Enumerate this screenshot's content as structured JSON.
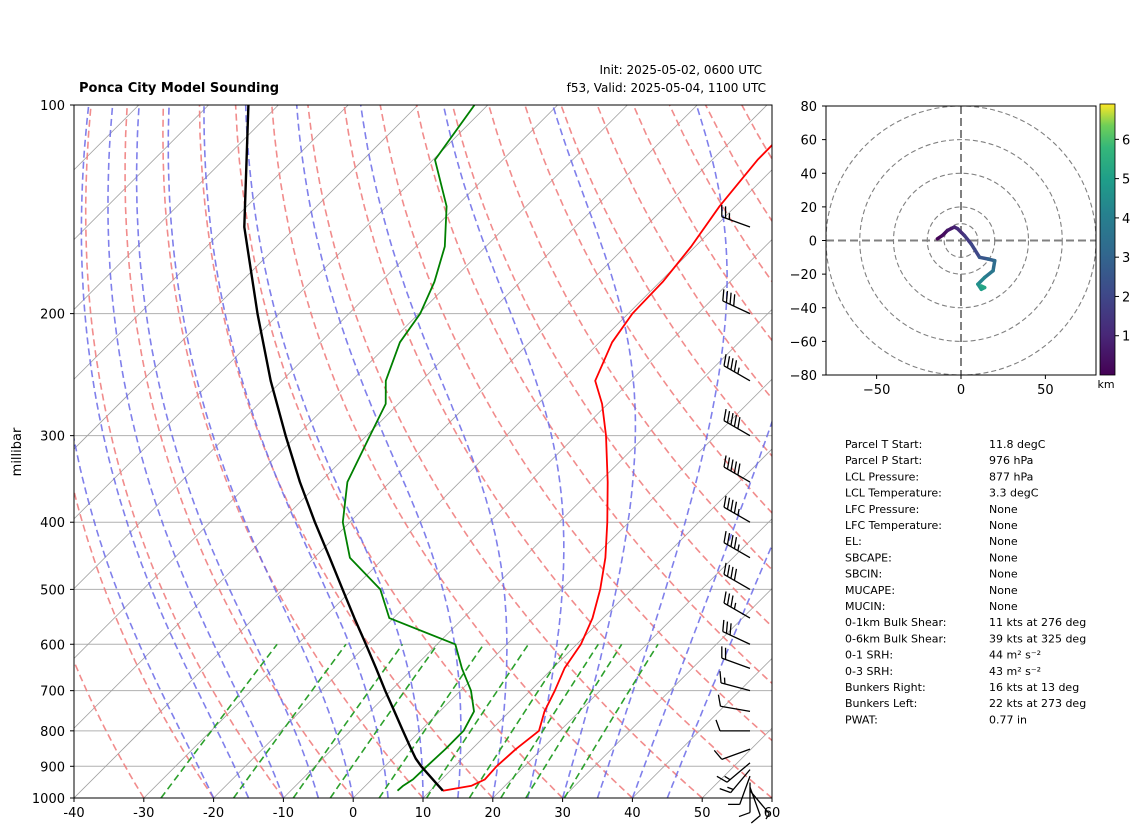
{
  "header": {
    "title": "Ponca City Model Sounding",
    "init": "Init: 2025-05-02, 0600 UTC",
    "valid": "f53, Valid: 2025-05-04, 1100 UTC"
  },
  "chart_data": [
    {
      "type": "skew-t",
      "ylabel": "millibar",
      "xlim": [
        -40,
        60
      ],
      "ylim": [
        1000,
        100
      ],
      "y_log_scale": true,
      "x_ticks": [
        -40,
        -30,
        -20,
        -10,
        0,
        10,
        20,
        30,
        40,
        50,
        60
      ],
      "y_ticks": [
        1000,
        900,
        800,
        700,
        600,
        500,
        400,
        300,
        200,
        100
      ],
      "colors": {
        "temperature": "#ff0000",
        "dewpoint": "#008000",
        "parcel": "#000000",
        "dry_adiabats": "#f08080",
        "moist_adiabats": "#6a6ae8",
        "mixing_ratio": "#2ca02c",
        "isotherms": "#a0a0a0"
      },
      "series": [
        {
          "key": "temperature",
          "p": [
            976,
            960,
            940,
            900,
            850,
            800,
            750,
            700,
            650,
            600,
            550,
            500,
            450,
            400,
            350,
            300,
            270,
            250,
            220,
            200,
            180,
            160,
            140,
            120,
            100
          ],
          "t": [
            11.8,
            15.2,
            16.2,
            16.0,
            16.3,
            17.0,
            15.0,
            13.5,
            11.7,
            10.6,
            8.5,
            5.5,
            1.7,
            -3.1,
            -8.8,
            -15.7,
            -20.8,
            -25.1,
            -28.2,
            -29.4,
            -29.6,
            -30.6,
            -32.3,
            -33.5,
            -33.6
          ]
        },
        {
          "key": "dewpoint",
          "p": [
            976,
            960,
            940,
            900,
            850,
            800,
            750,
            700,
            650,
            600,
            550,
            500,
            450,
            400,
            350,
            300,
            270,
            250,
            220,
            200,
            180,
            160,
            140,
            120,
            100
          ],
          "t": [
            5.3,
            5.4,
            5.9,
            6.0,
            6.2,
            6.2,
            4.9,
            1.5,
            -3.0,
            -7.4,
            -20.6,
            -26.0,
            -34.9,
            -41.0,
            -46.1,
            -49.5,
            -51.8,
            -55.1,
            -58.6,
            -59.8,
            -62.3,
            -65.9,
            -71.4,
            -79.7,
            -81.9
          ]
        },
        {
          "key": "parcel",
          "p": [
            976,
            950,
            900,
            877,
            850,
            800,
            750,
            700,
            650,
            600,
            550,
            500,
            450,
            400,
            350,
            300,
            250,
            200,
            150,
            100
          ],
          "t": [
            11.8,
            9.6,
            5.2,
            3.3,
            1.3,
            -2.5,
            -6.5,
            -10.8,
            -15.3,
            -20.2,
            -25.6,
            -31.4,
            -37.8,
            -45.0,
            -52.9,
            -61.6,
            -71.6,
            -83.1,
            -97.4,
            -114.3
          ]
        }
      ],
      "wind_barbs": {
        "p": [
          976,
          965,
          950,
          930,
          910,
          890,
          850,
          800,
          750,
          700,
          650,
          600,
          550,
          500,
          450,
          400,
          350,
          300,
          250,
          200,
          150
        ],
        "speed_kt": [
          8,
          10,
          12,
          14,
          16,
          18,
          14,
          10,
          12,
          15,
          22,
          30,
          35,
          40,
          45,
          48,
          50,
          50,
          45,
          40,
          25
        ],
        "direction_deg": [
          140,
          160,
          180,
          200,
          220,
          230,
          250,
          270,
          280,
          285,
          290,
          295,
          300,
          300,
          300,
          300,
          300,
          300,
          300,
          295,
          290
        ]
      }
    },
    {
      "type": "hodograph",
      "xlim": [
        -80,
        80
      ],
      "ylim": [
        -80,
        80
      ],
      "x_ticks": [
        -50,
        0,
        50
      ],
      "y_ticks": [
        80,
        60,
        40,
        20,
        0,
        -20,
        -40,
        -60,
        -80
      ],
      "rings_kt": [
        10,
        20,
        40,
        60,
        80
      ],
      "u": [
        -14,
        -11,
        -8,
        -4,
        -2,
        2,
        6,
        11,
        16,
        20,
        19,
        14,
        10,
        12,
        14,
        12
      ],
      "v": [
        1,
        3,
        6,
        8,
        7,
        3,
        -2,
        -10,
        -11,
        -12,
        -18,
        -22,
        -26,
        -29,
        -28,
        -27
      ],
      "height_km": [
        0.1,
        0.3,
        0.6,
        0.9,
        1.2,
        1.6,
        2.0,
        2.5,
        2.9,
        3.3,
        3.7,
        4.2,
        4.6,
        5.0,
        5.2,
        5.4
      ],
      "colorbar": {
        "label": "km",
        "ticks": [
          1,
          2,
          3,
          4,
          5,
          6
        ],
        "range": [
          0.0,
          6.9
        ]
      }
    }
  ],
  "params": [
    {
      "label": "Parcel T Start:",
      "value": "11.8 degC"
    },
    {
      "label": "Parcel P Start:",
      "value": "976 hPa"
    },
    {
      "label": "LCL Pressure:",
      "value": "877 hPa"
    },
    {
      "label": "LCL Temperature:",
      "value": "3.3 degC"
    },
    {
      "label": "LFC Pressure:",
      "value": "None"
    },
    {
      "label": "LFC Temperature:",
      "value": "None"
    },
    {
      "label": "EL:",
      "value": "None"
    },
    {
      "label": "SBCAPE:",
      "value": "None"
    },
    {
      "label": "SBCIN:",
      "value": "None"
    },
    {
      "label": "MUCAPE:",
      "value": "None"
    },
    {
      "label": "MUCIN:",
      "value": "None"
    },
    {
      "label": "0-1km Bulk Shear:",
      "value": "11 kts at 276 deg"
    },
    {
      "label": "0-6km Bulk Shear:",
      "value": "39 kts at 325 deg"
    },
    {
      "label": "0-1 SRH:",
      "value": "44 m² s⁻²"
    },
    {
      "label": "0-3 SRH:",
      "value": "43 m² s⁻²"
    },
    {
      "label": "Bunkers Right:",
      "value": "16 kts at 13 deg"
    },
    {
      "label": "Bunkers Left:",
      "value": "22 kts at 273 deg"
    },
    {
      "label": "PWAT:",
      "value": "0.77 in"
    }
  ]
}
